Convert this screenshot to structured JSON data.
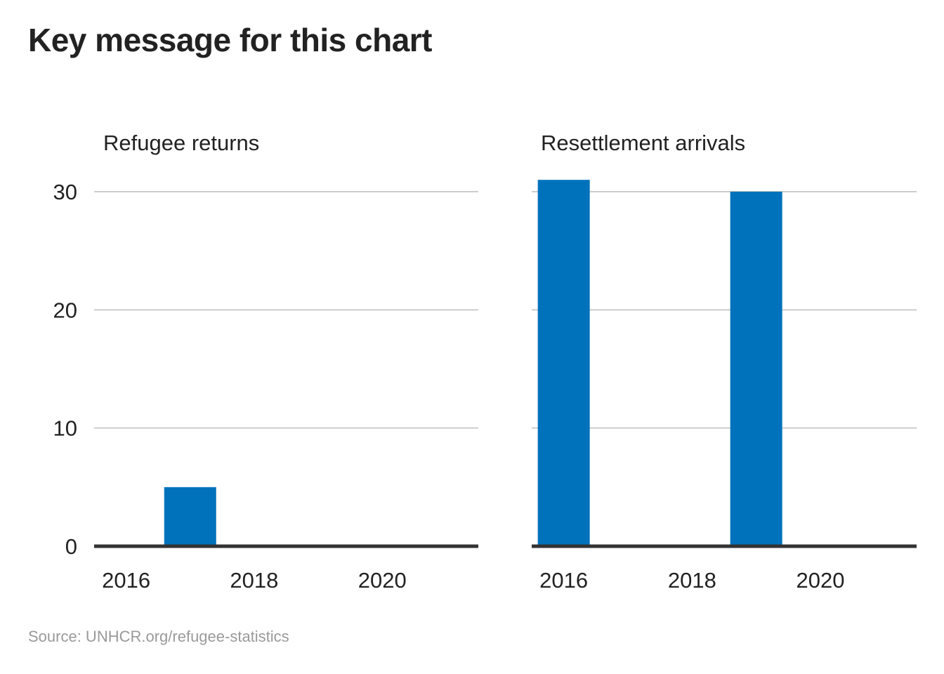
{
  "title": "Key message for this chart",
  "source": "Source: UNHCR.org/refugee-statistics",
  "colors": {
    "bar": "#0072bc",
    "gridline": "#cccccc",
    "baseline": "#333333",
    "text": "#222222",
    "source_text": "#9a9a9a"
  },
  "chart_data": [
    {
      "type": "bar",
      "title": "Refugee returns",
      "x": [
        2016,
        2017,
        2018,
        2019,
        2020,
        2021
      ],
      "values": [
        0,
        5,
        0,
        0,
        0,
        0
      ],
      "x_ticks": [
        "2016",
        "2018",
        "2020"
      ],
      "y_ticks": [
        "0",
        "10",
        "20",
        "30"
      ],
      "ylim": [
        0,
        30
      ],
      "grid": true,
      "xlabel": "",
      "ylabel": ""
    },
    {
      "type": "bar",
      "title": "Resettlement arrivals",
      "x": [
        2016,
        2017,
        2018,
        2019,
        2020,
        2021
      ],
      "values": [
        31,
        0,
        0,
        30,
        0,
        0
      ],
      "x_ticks": [
        "2016",
        "2018",
        "2020"
      ],
      "y_ticks": [],
      "ylim": [
        0,
        30
      ],
      "grid": true,
      "xlabel": "",
      "ylabel": ""
    }
  ]
}
